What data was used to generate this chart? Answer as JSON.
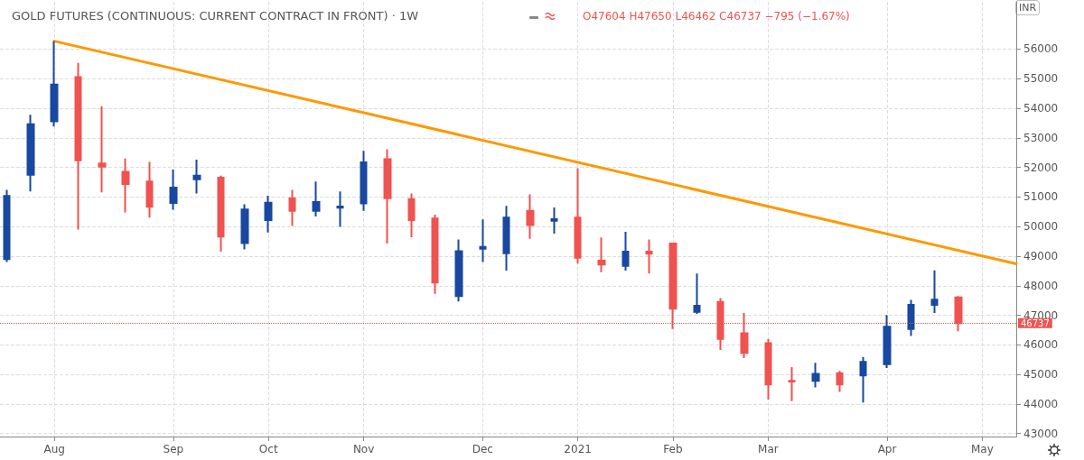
{
  "chart_data": {
    "type": "candlestick",
    "title": "GOLD FUTURES (CONTINUOUS: CURRENT CONTRACT IN FRONT) · 1W",
    "subtitle": "O47604 H47650 L46462 C46737 −795 (−1.67%)",
    "ylabel": "INR",
    "x": [
      "2020-07-20",
      "2020-07-27",
      "2020-08-03",
      "2020-08-10",
      "2020-08-17",
      "2020-08-24",
      "2020-08-31",
      "2020-09-07",
      "2020-09-14",
      "2020-09-21",
      "2020-09-28",
      "2020-10-05",
      "2020-10-12",
      "2020-10-19",
      "2020-10-26",
      "2020-11-02",
      "2020-11-09",
      "2020-11-16",
      "2020-11-23",
      "2020-11-30",
      "2020-12-07",
      "2020-12-14",
      "2020-12-21",
      "2020-12-28",
      "2021-01-04",
      "2021-01-11",
      "2021-01-18",
      "2021-01-25",
      "2021-02-01",
      "2021-02-08",
      "2021-02-15",
      "2021-02-22",
      "2021-03-01",
      "2021-03-08",
      "2021-03-15",
      "2021-03-22",
      "2021-03-29",
      "2021-04-05",
      "2021-04-12",
      "2021-04-19",
      "2021-04-26"
    ],
    "ohlc": [
      [
        48900,
        51240,
        48800,
        51035
      ],
      [
        51750,
        53780,
        51190,
        53460
      ],
      [
        53560,
        56270,
        53380,
        54800
      ],
      [
        55050,
        55530,
        49900,
        52240
      ],
      [
        52130,
        54070,
        51160,
        52030
      ],
      [
        51850,
        52300,
        50480,
        51440
      ],
      [
        51520,
        52190,
        50300,
        50670
      ],
      [
        50800,
        51930,
        50570,
        51320
      ],
      [
        51600,
        52260,
        51120,
        51720
      ],
      [
        51650,
        51720,
        49150,
        49660
      ],
      [
        49440,
        50750,
        49230,
        50580
      ],
      [
        50220,
        51040,
        49800,
        50810
      ],
      [
        50950,
        51240,
        50020,
        50530
      ],
      [
        50530,
        51520,
        50340,
        50830
      ],
      [
        50640,
        51190,
        49990,
        50680
      ],
      [
        50780,
        52560,
        50530,
        52170
      ],
      [
        52280,
        52610,
        49430,
        50960
      ],
      [
        50930,
        51120,
        49640,
        50220
      ],
      [
        50270,
        50400,
        47730,
        48110
      ],
      [
        47650,
        49560,
        47470,
        49170
      ],
      [
        49250,
        50240,
        48800,
        49310
      ],
      [
        49100,
        50700,
        48510,
        50300
      ],
      [
        50530,
        51090,
        49590,
        50050
      ],
      [
        50200,
        50650,
        49760,
        50250
      ],
      [
        50300,
        51970,
        48750,
        48950
      ],
      [
        48850,
        49630,
        48460,
        48720
      ],
      [
        48670,
        49820,
        48510,
        49150
      ],
      [
        49150,
        49560,
        48410,
        49080
      ],
      [
        49430,
        49460,
        46540,
        47220
      ],
      [
        47120,
        48410,
        47050,
        47320
      ],
      [
        47450,
        47580,
        45830,
        46200
      ],
      [
        46390,
        47080,
        45550,
        45730
      ],
      [
        46060,
        46200,
        44150,
        44660
      ],
      [
        44780,
        45250,
        44100,
        44760
      ],
      [
        44780,
        45390,
        44560,
        45020
      ],
      [
        45040,
        45120,
        44410,
        44660
      ],
      [
        44970,
        45590,
        44050,
        45420
      ],
      [
        45350,
        47010,
        45220,
        46610
      ],
      [
        46540,
        47520,
        46300,
        47350
      ],
      [
        47350,
        48520,
        47080,
        47530
      ],
      [
        47604,
        47650,
        46462,
        46737
      ]
    ],
    "colors": [
      "#1848a0",
      "#1848a0",
      "#1848a0",
      "#ef5350",
      "#ef5350",
      "#ef5350",
      "#ef5350",
      "#1848a0",
      "#1848a0",
      "#ef5350",
      "#1848a0",
      "#1848a0",
      "#ef5350",
      "#1848a0",
      "#1848a0",
      "#1848a0",
      "#ef5350",
      "#ef5350",
      "#ef5350",
      "#1848a0",
      "#1848a0",
      "#1848a0",
      "#ef5350",
      "#1848a0",
      "#ef5350",
      "#ef5350",
      "#1848a0",
      "#ef5350",
      "#ef5350",
      "#1848a0",
      "#ef5350",
      "#ef5350",
      "#ef5350",
      "#ef5350",
      "#1848a0",
      "#ef5350",
      "#1848a0",
      "#1848a0",
      "#1848a0",
      "#1848a0",
      "#ef5350"
    ],
    "series": [
      {
        "type": "line",
        "color": "#ff9800",
        "x": [
          "2020-08-03",
          "2021-05-13"
        ],
        "values": [
          56270,
          48740
        ]
      }
    ],
    "ref_lines": [
      {
        "axis": "y",
        "value": 46737,
        "label": "46737",
        "color": "#ef5350",
        "line_style": "dotted"
      }
    ],
    "xlim": [
      "2020-07-18",
      "2021-05-13"
    ],
    "xticks": [
      {
        "value": "2020-08-03",
        "label": "Aug"
      },
      {
        "value": "2020-09-07",
        "label": "Sep"
      },
      {
        "value": "2020-10-05",
        "label": "Oct"
      },
      {
        "value": "2020-11-02",
        "label": "Nov"
      },
      {
        "value": "2020-12-07",
        "label": "Dec"
      },
      {
        "value": "2021-01-04",
        "label": "2021"
      },
      {
        "value": "2021-02-01",
        "label": "Feb"
      },
      {
        "value": "2021-03-01",
        "label": "Mar"
      },
      {
        "value": "2021-04-05",
        "label": "Apr"
      },
      {
        "value": "2021-05-03",
        "label": "May"
      }
    ],
    "ylim": [
      42900,
      57600
    ],
    "yticks": [
      43000,
      44000,
      45000,
      46000,
      47000,
      48000,
      49000,
      50000,
      51000,
      52000,
      53000,
      54000,
      55000,
      56000
    ],
    "grid": true
  }
}
